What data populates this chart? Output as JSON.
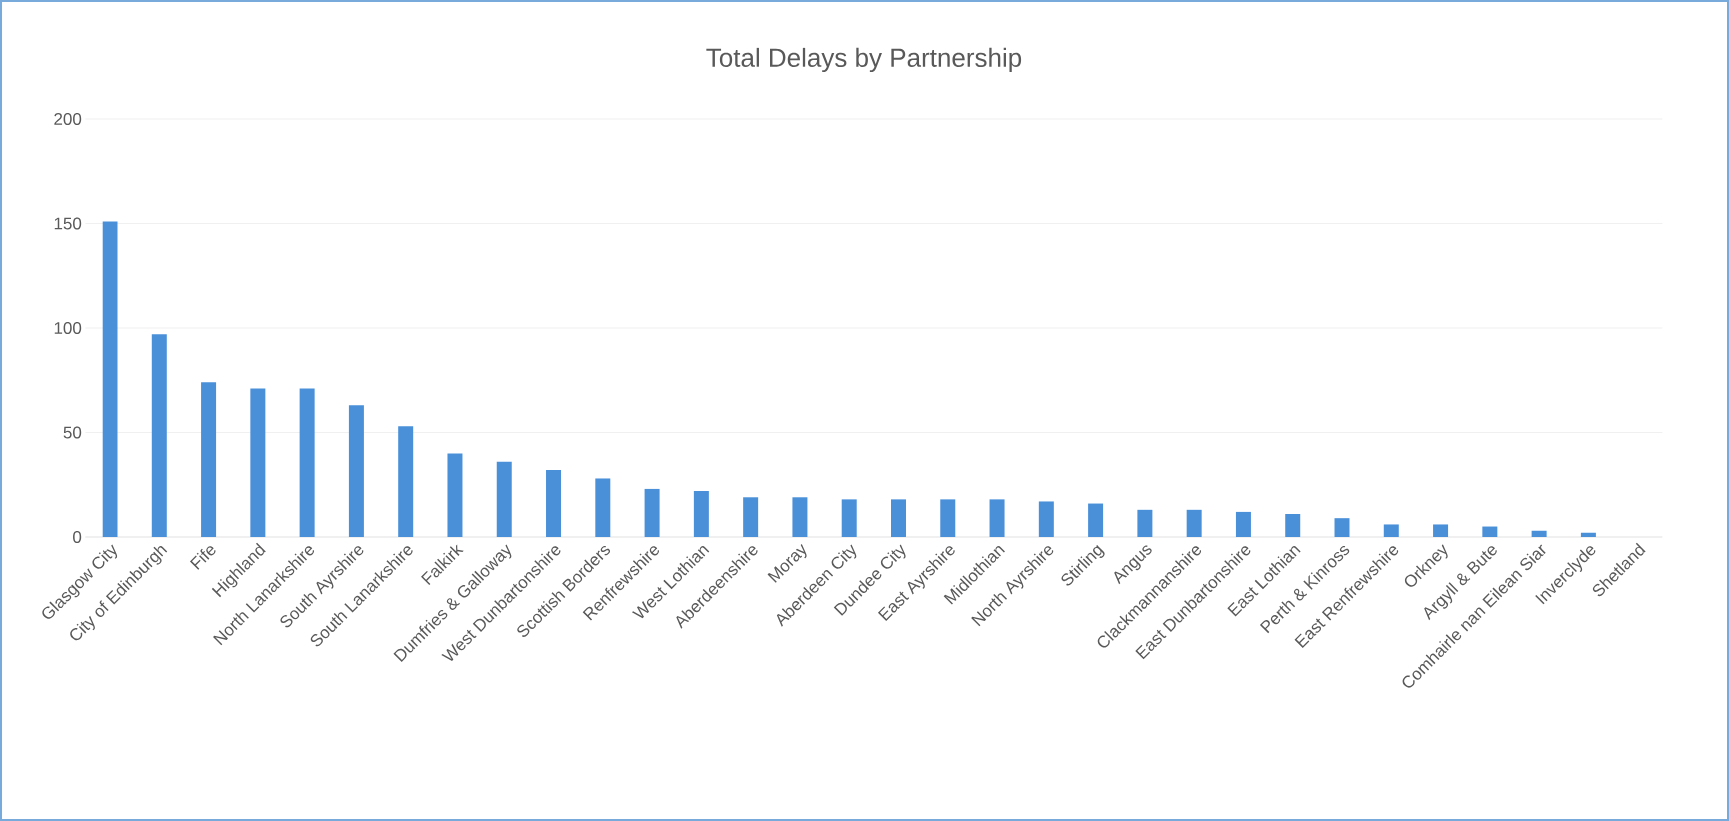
{
  "chart_data": {
    "type": "bar",
    "title": "Total Delays by Partnership",
    "categories": [
      "Glasgow City",
      "City of Edinburgh",
      "Fife",
      "Highland",
      "North Lanarkshire",
      "South Ayrshire",
      "South Lanarkshire",
      "Falkirk",
      "Dumfries & Galloway",
      "West Dunbartonshire",
      "Scottish Borders",
      "Renfrewshire",
      "West Lothian",
      "Aberdeenshire",
      "Moray",
      "Aberdeen City",
      "Dundee City",
      "East Ayrshire",
      "Midlothian",
      "North Ayrshire",
      "Stirling",
      "Angus",
      "Clackmannanshire",
      "East Dunbartonshire",
      "East Lothian",
      "Perth & Kinross",
      "East Renfrewshire",
      "Orkney",
      "Argyll & Bute",
      "Comhairle nan Eilean Siar",
      "Inverclyde",
      "Shetland"
    ],
    "values": [
      151,
      97,
      74,
      71,
      71,
      63,
      53,
      40,
      36,
      32,
      28,
      23,
      22,
      19,
      19,
      18,
      18,
      18,
      18,
      17,
      16,
      13,
      13,
      12,
      11,
      9,
      6,
      6,
      5,
      3,
      2,
      0
    ],
    "color": "#4a90d9",
    "ylim": [
      0,
      200
    ],
    "yticks": [
      0,
      50,
      100,
      150,
      200
    ],
    "grid": "y"
  }
}
